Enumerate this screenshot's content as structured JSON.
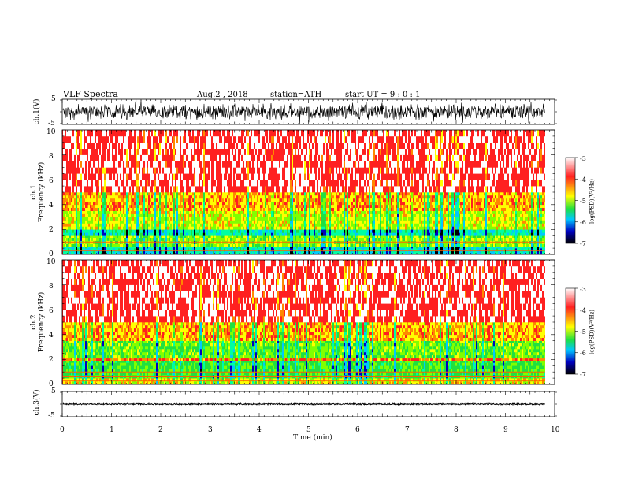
{
  "header": {
    "title": "VLF Spectra",
    "date": "Aug.2 , 2018",
    "station": "station=ATH",
    "start": "start UT = 9 : 0 : 1"
  },
  "panels": {
    "ch1_wave": {
      "ylabel": "ch.1(V)",
      "ticks": [
        "5",
        "-5"
      ]
    },
    "ch1_spec": {
      "ylabel_ch": "ch.1",
      "ylabel": "Frequency (kHz)"
    },
    "ch2_spec": {
      "ylabel_ch": "ch.2",
      "ylabel": "Frequency (kHz)"
    },
    "ch3_wave": {
      "ylabel": "ch.3(V)",
      "ticks": [
        "5",
        "-5"
      ]
    }
  },
  "colorbar": {
    "label": "log(PSD)(V²/Hz)",
    "ticks": [
      "-3",
      "-4",
      "-5",
      "-6",
      "-7"
    ],
    "stops": [
      "#ffffff",
      "#ff2020",
      "#ffff00",
      "#20e040",
      "#00c8ff",
      "#0000c0",
      "#000000"
    ]
  },
  "chart_data": [
    {
      "type": "line",
      "name": "ch1-waveform",
      "xlim": [
        0,
        10
      ],
      "ylim": [
        -5,
        5
      ],
      "ylabel": "ch.1(V)",
      "amplitude_typical": 2.5,
      "x_end_min": 9.8
    },
    {
      "type": "heatmap",
      "name": "ch1-spectrogram",
      "xlim": [
        0,
        10
      ],
      "ylim": [
        0,
        10
      ],
      "yticks": [
        0,
        2,
        4,
        6,
        8,
        10
      ],
      "ylabel": "Frequency (kHz)",
      "color_scale": [
        -7,
        -3
      ],
      "x_end_min": 9.8,
      "bands_khz": [
        {
          "from": 0,
          "to": 0.6,
          "log_psd": -5.5
        },
        {
          "from": 0.6,
          "to": 1.5,
          "log_psd": -4.6
        },
        {
          "from": 1.5,
          "to": 2.0,
          "log_psd": -5.4
        },
        {
          "from": 2.0,
          "to": 3.5,
          "log_psd": -4.4
        },
        {
          "from": 3.5,
          "to": 5.0,
          "log_psd": -4.1
        },
        {
          "from": 5.0,
          "to": 10,
          "log_psd": -3.5
        }
      ]
    },
    {
      "type": "heatmap",
      "name": "ch2-spectrogram",
      "xlim": [
        0,
        10
      ],
      "ylim": [
        0,
        10
      ],
      "yticks": [
        0,
        2,
        4,
        6,
        8,
        10
      ],
      "ylabel": "Frequency (kHz)",
      "color_scale": [
        -7,
        -3
      ],
      "x_end_min": 9.8,
      "bands_khz": [
        {
          "from": 0,
          "to": 0.5,
          "log_psd": -4.3
        },
        {
          "from": 0.5,
          "to": 1.9,
          "log_psd": -4.9
        },
        {
          "from": 1.9,
          "to": 2.1,
          "log_psd": -3.9
        },
        {
          "from": 2.1,
          "to": 3.5,
          "log_psd": -4.7
        },
        {
          "from": 3.5,
          "to": 5.0,
          "log_psd": -4.1
        },
        {
          "from": 5.0,
          "to": 10,
          "log_psd": -3.5
        }
      ]
    },
    {
      "type": "line",
      "name": "ch3-waveform",
      "xlim": [
        0,
        10
      ],
      "ylim": [
        -5,
        5
      ],
      "ylabel": "ch.3(V)",
      "amplitude_typical": 0.3,
      "x_end_min": 9.8
    }
  ],
  "xaxis": {
    "label": "Time (min)",
    "ticks": [
      "0",
      "1",
      "2",
      "3",
      "4",
      "5",
      "6",
      "7",
      "8",
      "9",
      "10"
    ]
  },
  "spec_yticks": [
    "0",
    "2",
    "4",
    "6",
    "8",
    "10"
  ]
}
